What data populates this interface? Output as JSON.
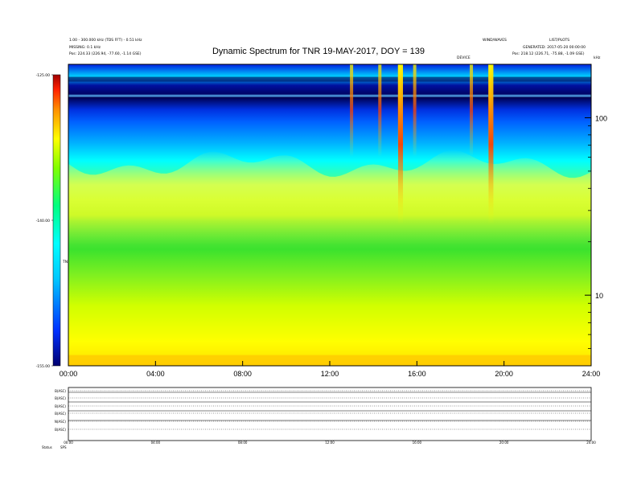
{
  "header": {
    "left_line1": "1.00 - 300.000 kHz (TDS FFT) - 0.51 kHz",
    "left_line2": "MISSING: 0.1 kHz",
    "left_pos": "Pos: 224.33 (226.94, -77.60, -1.14 GSE)",
    "right_top1": "WIND/WAVES",
    "right_top2": "LIST/PLOTS",
    "right_line2": "GENERATED: 2017-05-20 00:00:00",
    "right_pos": "Pos: 218.12 (226.71, -75.88, -1.09 GSE)",
    "marker_label": "DEVICE",
    "corner_label": "kHz"
  },
  "chart_data": {
    "type": "heatmap",
    "title": "Dynamic Spectrum for TNR 19-MAY-2017, DOY = 139",
    "x_ticks": [
      "00:00",
      "04:00",
      "08:00",
      "12:00",
      "16:00",
      "20:00",
      "24:00"
    ],
    "x_range_hours": [
      0,
      24
    ],
    "y_scale": "log",
    "y_range": [
      4,
      200
    ],
    "y_ticks": [
      "100",
      "10"
    ],
    "colorbar": {
      "ticks": [
        "-125.00",
        "-140.00",
        "-155.00"
      ],
      "range": [
        -155,
        -125
      ],
      "label": "TNR",
      "colors": [
        "#000070",
        "#0030ff",
        "#00c8ff",
        "#00ffff",
        "#00ff80",
        "#80ff00",
        "#ffff00",
        "#ff9000",
        "#ff2000",
        "#a00000"
      ]
    },
    "summary": {
      "background_level_db": -150,
      "enhanced_band_khz": [
        20,
        55
      ],
      "bursts_hours": [
        13.0,
        14.3,
        15.2,
        15.9,
        18.5,
        19.35
      ],
      "strongest_bursts_hours": [
        15.25,
        19.4
      ]
    },
    "panels": {
      "labels": [
        "B(ASC)",
        "B(ASC)",
        "B(ASC)",
        "B(ASC)",
        "N(ASC)",
        "B(ASC)"
      ],
      "x_ticks": [
        "00:00",
        "04:00",
        "08:00",
        "12:00",
        "16:00",
        "20:00",
        "24:00"
      ],
      "footer_label": "Status",
      "footer_value": "SPS"
    }
  },
  "colors": {
    "band_dark": "#000070",
    "band_blue": "#0030ff",
    "cyan": "#00ffff",
    "green": "#20e040",
    "yellow": "#ffff00",
    "red": "#ff2000"
  }
}
